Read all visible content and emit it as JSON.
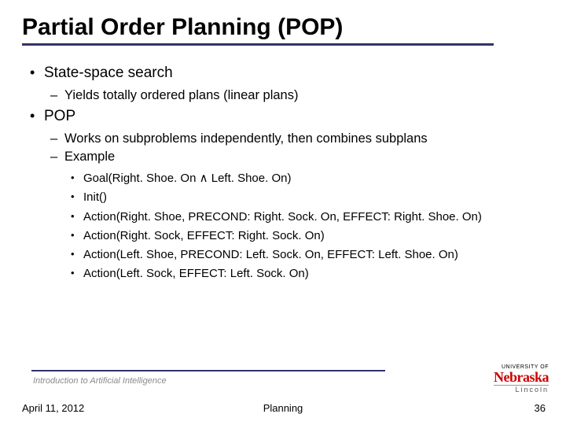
{
  "title": "Partial Order Planning (POP)",
  "bullets": {
    "b1": "State-space search",
    "b1_1": "Yields totally ordered plans (linear plans)",
    "b2": "POP",
    "b2_1": "Works on subproblems independently, then combines subplans",
    "b2_2": "Example",
    "b2_2_1": "Goal(Right. Shoe. On ∧ Left. Shoe. On)",
    "b2_2_2": "Init()",
    "b2_2_3": "Action(Right. Shoe, PRECOND: Right. Sock. On, EFFECT: Right. Shoe. On)",
    "b2_2_4": "Action(Right. Sock, EFFECT: Right. Sock. On)",
    "b2_2_5": "Action(Left. Shoe, PRECOND: Left. Sock. On, EFFECT: Left. Shoe. On)",
    "b2_2_6": "Action(Left. Sock, EFFECT: Left. Sock. On)"
  },
  "footer": {
    "course": "Introduction to Artificial Intelligence",
    "date": "April 11, 2012",
    "center": "Planning",
    "page": "36"
  },
  "logo": {
    "top": "UNIVERSITY OF",
    "main": "Nebraska",
    "sub": "Lincoln"
  },
  "colors": {
    "rule": "#333366",
    "logo_red": "#cc0000",
    "text": "#000000",
    "footer_gray": "#8a8a8a"
  }
}
